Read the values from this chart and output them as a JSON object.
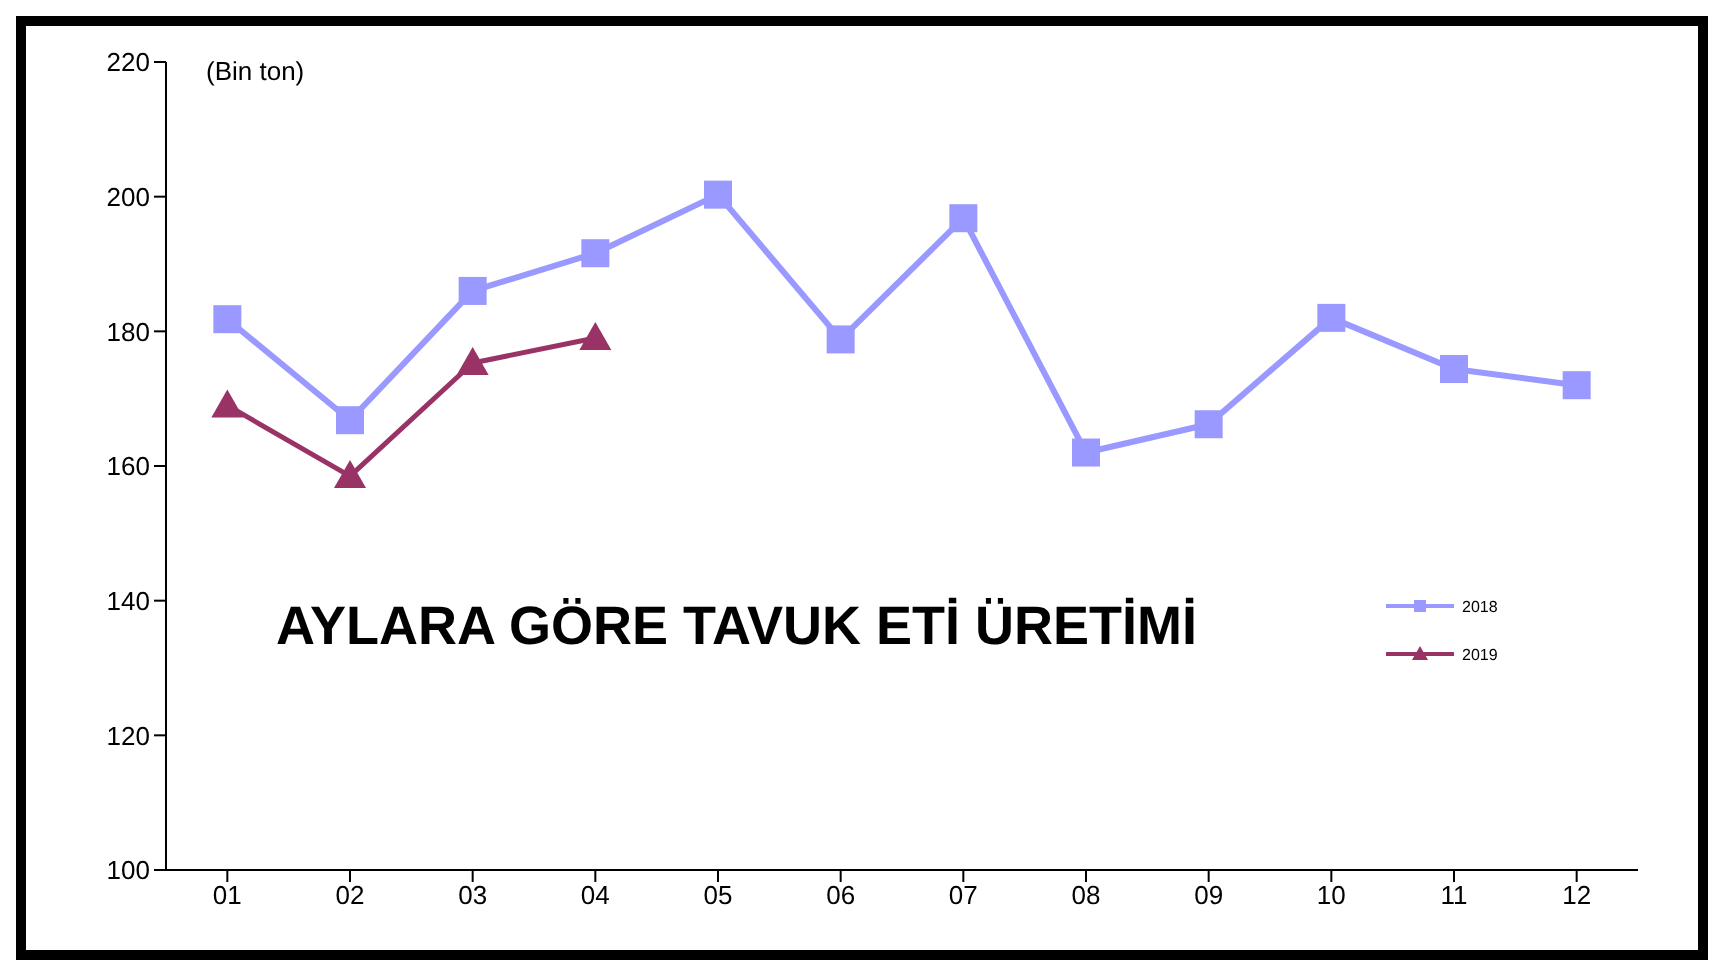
{
  "chart_data": {
    "type": "line",
    "title": "AYLARA GÖRE TAVUK ETİ ÜRETİMİ",
    "ylabel": "(Bin ton)",
    "categories": [
      "01",
      "02",
      "03",
      "04",
      "05",
      "06",
      "07",
      "08",
      "09",
      "10",
      "11",
      "12"
    ],
    "series": [
      {
        "name": "2018",
        "color": "#9999ff",
        "marker": "square",
        "values": [
          181.8,
          166.8,
          186,
          191.6,
          200.3,
          178.8,
          196.8,
          162,
          166.2,
          182,
          174.4,
          172
        ]
      },
      {
        "name": "2019",
        "color": "#993366",
        "marker": "triangle",
        "values": [
          169,
          158.5,
          175.3,
          179,
          null,
          null,
          null,
          null,
          null,
          null,
          null,
          null
        ]
      }
    ],
    "ylim": [
      100,
      220
    ],
    "yticks": [
      100,
      120,
      140,
      160,
      180,
      200,
      220
    ],
    "grid": false,
    "legend": "right"
  }
}
